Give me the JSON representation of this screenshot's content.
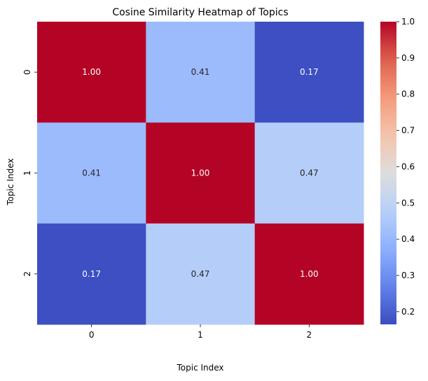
{
  "chart_data": {
    "type": "heatmap",
    "title": "Cosine Similarity Heatmap of Topics",
    "xlabel": "Topic Index",
    "ylabel": "Topic Index",
    "x_categories": [
      "0",
      "1",
      "2"
    ],
    "y_categories": [
      "0",
      "1",
      "2"
    ],
    "values": [
      [
        1.0,
        0.41,
        0.17
      ],
      [
        0.41,
        1.0,
        0.47
      ],
      [
        0.17,
        0.47,
        1.0
      ]
    ],
    "cell_labels": [
      [
        "1.00",
        "0.41",
        "0.17"
      ],
      [
        "0.41",
        "1.00",
        "0.47"
      ],
      [
        "0.17",
        "0.47",
        "1.00"
      ]
    ],
    "colormap": "coolwarm",
    "colorbar": {
      "range": [
        0.165,
        1.0
      ],
      "ticks": [
        0.2,
        0.3,
        0.4,
        0.5,
        0.6,
        0.7,
        0.8,
        0.9,
        1.0
      ],
      "tick_labels": [
        "0.2",
        "0.3",
        "0.4",
        "0.5",
        "0.6",
        "0.7",
        "0.8",
        "0.9",
        "1.0"
      ]
    }
  }
}
